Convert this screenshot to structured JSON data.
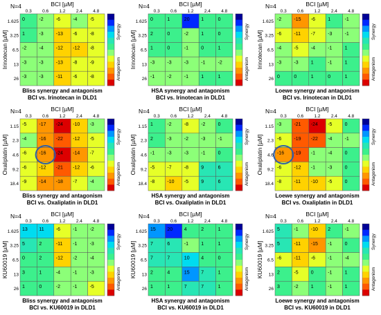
{
  "colors": {
    "scale": [
      "#dc0000",
      "#ff5a00",
      "#ff9600",
      "#ffd200",
      "#e6ff28",
      "#8cff78",
      "#3cf08c",
      "#28e6b4",
      "#00dcf0",
      "#0096ff",
      "#0028ff",
      "#000096"
    ],
    "border": "#5a5a5a",
    "highlight": "#2e5fa8"
  },
  "chart_data": [
    {
      "type": "heatmap",
      "n_label": "N=4",
      "title": "Bliss synergy and antagonism",
      "subtitle": "BCI vs. Irinotecan in DLD1",
      "xlabel": "BCI [µM]",
      "ylabel": "Irinotecan [µM]",
      "x_ticks": [
        "0.3",
        "0.6",
        "1.2",
        "2.4",
        "4.8"
      ],
      "y_ticks": [
        "1.625",
        "3.25",
        "6.5",
        "13",
        "26"
      ],
      "colorbar_labels": [
        "Synergy",
        "Antagonism"
      ],
      "values": [
        [
          0,
          -2,
          -6,
          -4,
          -5
        ],
        [
          1,
          -3,
          -13,
          -6,
          -8
        ],
        [
          -2,
          -4,
          -12,
          -12,
          -8
        ],
        [
          -3,
          -3,
          -13,
          -8,
          -9
        ],
        [
          -3,
          -3,
          -11,
          -6,
          -8
        ]
      ],
      "highlight": null
    },
    {
      "type": "heatmap",
      "n_label": "N=4",
      "title": "HSA synergy and antagonism",
      "subtitle": "BCI vs. Irinotecan in DLD1",
      "xlabel": "BCI [µM]",
      "ylabel": "Irinotecan [µM]",
      "x_ticks": [
        "0.3",
        "0.6",
        "1.2",
        "2.4",
        "4.8"
      ],
      "y_ticks": [
        "1.625",
        "3.25",
        "6.5",
        "13",
        "26"
      ],
      "colorbar_labels": [
        "Synergy",
        "Antagonism"
      ],
      "values": [
        [
          0,
          1,
          20,
          1,
          0
        ],
        [
          2,
          0,
          -2,
          1,
          0
        ],
        [
          1,
          0,
          -1,
          0,
          1
        ],
        [
          -3,
          -3,
          -3,
          -1,
          -2
        ],
        [
          -1,
          -2,
          -1,
          1,
          1
        ]
      ],
      "highlight": null
    },
    {
      "type": "heatmap",
      "n_label": "N=4",
      "title": "Loewe synergy and antagonism",
      "subtitle": "BCI vs. Irinotecan in DLD1",
      "xlabel": "BCI [µM]",
      "ylabel": "Irinotecan [µM]",
      "x_ticks": [
        "0.3",
        "0.6",
        "1.2",
        "2.4",
        "4.8"
      ],
      "y_ticks": [
        "1.625",
        "3.25",
        "6.5",
        "13",
        "26"
      ],
      "colorbar_labels": [
        "Synergy",
        "Antagonism"
      ],
      "values": [
        [
          -2,
          -15,
          -6,
          1,
          -1
        ],
        [
          -6,
          -11,
          -7,
          -3,
          -1
        ],
        [
          -4,
          -5,
          -4,
          -1,
          1
        ],
        [
          -3,
          -3,
          1,
          -1,
          1
        ],
        [
          0,
          0,
          1,
          0,
          1
        ]
      ],
      "highlight": null
    },
    {
      "type": "heatmap",
      "n_label": "N=4",
      "title": "Bliss synergy and antagonism",
      "subtitle": "BCI vs. Oxaliplatin in DLD1",
      "xlabel": "BCI [µM]",
      "ylabel": "Oxaliplatin [µM]",
      "x_ticks": [
        "0.3",
        "0.6",
        "1.2",
        "2.4",
        "4.8"
      ],
      "y_ticks": [
        "1.15",
        "2.3",
        "4.6",
        "9.2",
        "18.4"
      ],
      "colorbar_labels": [
        "Synergy",
        "Antagonism"
      ],
      "values": [
        [
          -5,
          -17,
          -24,
          -10,
          -3
        ],
        [
          -4,
          -16,
          -22,
          -12,
          -5
        ],
        [
          -6,
          -16,
          -24,
          -14,
          -7
        ],
        [
          -6,
          -12,
          -21,
          -12,
          -6
        ],
        [
          -9,
          -14,
          -18,
          -7,
          -4
        ]
      ],
      "highlight": [
        2,
        1
      ]
    },
    {
      "type": "heatmap",
      "n_label": "N=4",
      "title": "HSA synergy and antagonism",
      "subtitle": "BCI vs. Oxaliplatin in DLD1",
      "xlabel": "BCI [µM]",
      "ylabel": "Oxaliplatin [µM]",
      "x_ticks": [
        "0.3",
        "0.6",
        "1.2",
        "2.4",
        "4.8"
      ],
      "y_ticks": [
        "1.15",
        "2.3",
        "4.6",
        "9.2",
        "18.4"
      ],
      "colorbar_labels": [
        "Synergy",
        "Antagonism"
      ],
      "values": [
        [
          1,
          -2,
          -8,
          -2,
          0
        ],
        [
          2,
          -3,
          -2,
          -3,
          -1
        ],
        [
          -1,
          -3,
          -3,
          -1,
          0
        ],
        [
          -5,
          -7,
          -8,
          9,
          6
        ],
        [
          -8,
          -10,
          -5,
          9,
          6
        ]
      ],
      "highlight": null
    },
    {
      "type": "heatmap",
      "n_label": "N=4",
      "title": "Loewe synergy and antagonism",
      "subtitle": "BCI vs. Oxaliplatin in DLD1",
      "xlabel": "BCI [µM]",
      "ylabel": "Oxaliplatin [µM]",
      "x_ticks": [
        "0.3",
        "0.6",
        "1.2",
        "2.4",
        "4.8"
      ],
      "y_ticks": [
        "1.15",
        "2.3",
        "4.6",
        "9.2",
        "18.4"
      ],
      "colorbar_labels": [
        "Synergy",
        "Antagonism"
      ],
      "values": [
        [
          -3,
          -21,
          -24,
          -5,
          0
        ],
        [
          -6,
          -19,
          -22,
          -4,
          -1
        ],
        [
          -16,
          -19,
          -1,
          -4,
          0
        ],
        [
          -6,
          -12,
          -1,
          -3,
          0
        ],
        [
          -8,
          -11,
          -10,
          -5,
          0
        ]
      ],
      "highlight": [
        2,
        0
      ]
    },
    {
      "type": "heatmap",
      "n_label": "N=4",
      "title": "Bliss synergy and antagonism",
      "subtitle": "BCI vs. KU60019 in DLD1",
      "xlabel": "BCI [µM]",
      "ylabel": "KU60019 [µM]",
      "x_ticks": [
        "0.3",
        "0.6",
        "1.2",
        "2.4",
        "4.8"
      ],
      "y_ticks": [
        "1.625",
        "3.25",
        "6.5",
        "13",
        "26"
      ],
      "colorbar_labels": [
        "Synergy",
        "Antagonism"
      ],
      "values": [
        [
          13,
          11,
          -6,
          -1,
          -2
        ],
        [
          5,
          2,
          -11,
          -1,
          -3
        ],
        [
          0,
          2,
          -12,
          -2,
          -4
        ],
        [
          3,
          1,
          -4,
          -1,
          -3
        ],
        [
          1,
          0,
          -2,
          -1,
          -5
        ]
      ],
      "highlight": null
    },
    {
      "type": "heatmap",
      "n_label": "N=4",
      "title": "HSA synergy and antagonism",
      "subtitle": "BCI vs. KU60019 in DLD1",
      "xlabel": "BCI [µM]",
      "ylabel": "KU60019 [µM]",
      "x_ticks": [
        "0.3",
        "0.6",
        "1.2",
        "2.4",
        "4.8"
      ],
      "y_ticks": [
        "1.625",
        "3.25",
        "6.5",
        "13",
        "26"
      ],
      "colorbar_labels": [
        "Synergy",
        "Antagonism"
      ],
      "values": [
        [
          15,
          20,
          4,
          2,
          1
        ],
        [
          7,
          6,
          -1,
          1,
          1
        ],
        [
          7,
          7,
          10,
          4,
          0
        ],
        [
          2,
          4,
          15,
          7,
          1
        ],
        [
          1,
          1,
          7,
          7,
          1
        ]
      ],
      "highlight": null
    },
    {
      "type": "heatmap",
      "n_label": "N=4",
      "title": "Loewe synergy and antagonism",
      "subtitle": "BCI vs. KU60019 in DLD1",
      "xlabel": "BCI [µM]",
      "ylabel": "KU60019 [µM]",
      "x_ticks": [
        "0.3",
        "0.6",
        "1.2",
        "2.4",
        "4.8"
      ],
      "y_ticks": [
        "1.625",
        "3.25",
        "6.5",
        "13",
        "26"
      ],
      "colorbar_labels": [
        "Synergy",
        "Antagonism"
      ],
      "values": [
        [
          5,
          -1,
          -10,
          2,
          -1
        ],
        [
          5,
          -11,
          -15,
          -1,
          0
        ],
        [
          -6,
          -11,
          -6,
          -1,
          -4
        ],
        [
          2,
          -5,
          0,
          -1,
          1
        ],
        [
          3,
          -2,
          1,
          -1,
          1
        ]
      ],
      "highlight": null
    }
  ]
}
